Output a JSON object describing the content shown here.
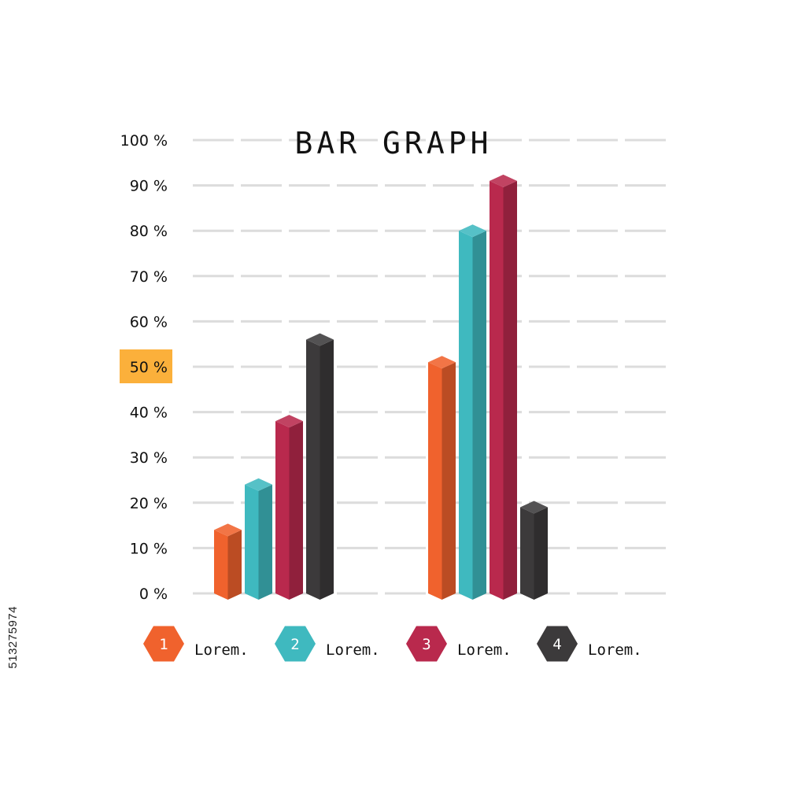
{
  "chart_data": {
    "type": "bar",
    "title": "BAR GRAPH",
    "categories": [
      "",
      ""
    ],
    "y_ticks": [
      "0 %",
      "10 %",
      "20 %",
      "30 %",
      "40 %",
      "50 %",
      "60 %",
      "70 %",
      "80 %",
      "90 %",
      "100 %"
    ],
    "highlighted_tick": "50 %",
    "ylim": [
      0,
      100
    ],
    "grid": true,
    "legend_position": "bottom",
    "series": [
      {
        "number": "1",
        "label": "Lorem.",
        "color": "#f0622d",
        "values": [
          14,
          51
        ]
      },
      {
        "number": "2",
        "label": "Lorem.",
        "color": "#3fb9bf",
        "values": [
          24,
          80
        ]
      },
      {
        "number": "3",
        "label": "Lorem.",
        "color": "#b9294d",
        "values": [
          38,
          91
        ]
      },
      {
        "number": "4",
        "label": "Lorem.",
        "color": "#3c3a3b",
        "values": [
          56,
          19
        ]
      }
    ],
    "highlight_color": "#fbb03b"
  },
  "stock_id": "513275974"
}
